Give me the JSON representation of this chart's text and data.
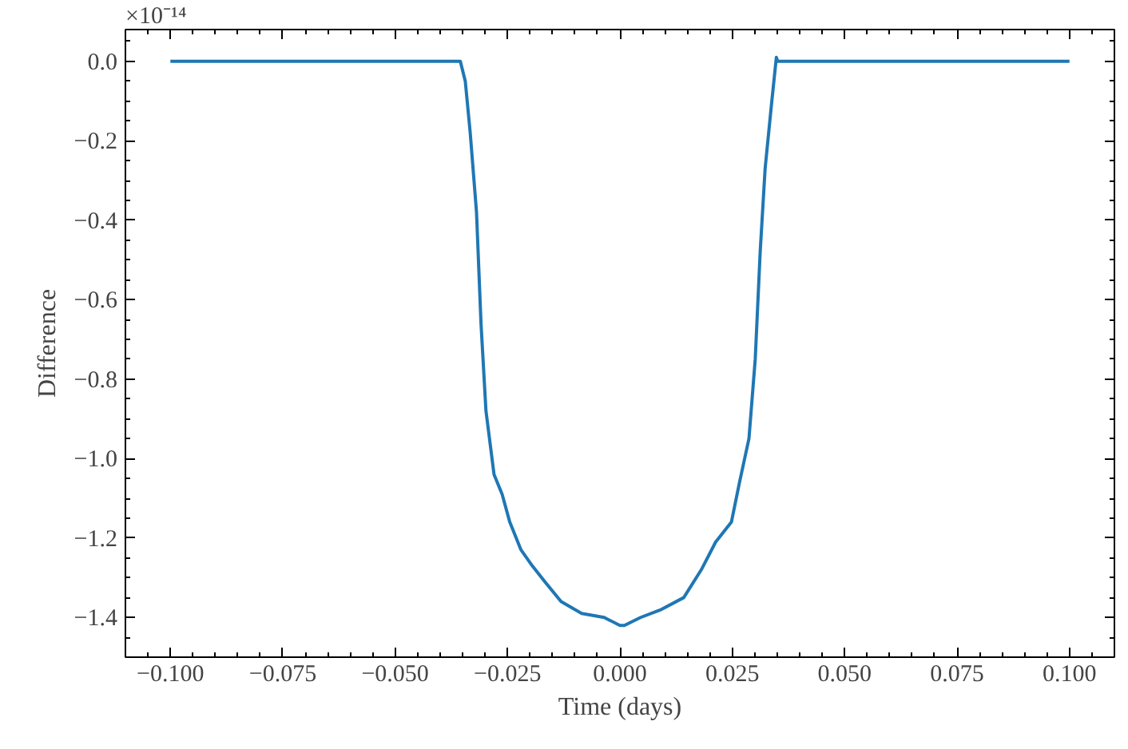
{
  "chart_data": {
    "type": "line",
    "xlabel": "Time (days)",
    "ylabel": "Difference",
    "annotations": [
      "×10⁻¹⁴"
    ],
    "xlim": [
      -0.11,
      0.11
    ],
    "ylim": [
      -1.5,
      0.08
    ],
    "xticks": [
      {
        "value": -0.1,
        "label": "−0.100"
      },
      {
        "value": -0.075,
        "label": "−0.075"
      },
      {
        "value": -0.05,
        "label": "−0.050"
      },
      {
        "value": -0.025,
        "label": "−0.025"
      },
      {
        "value": 0,
        "label": "0.000"
      },
      {
        "value": 0.025,
        "label": "0.025"
      },
      {
        "value": 0.05,
        "label": "0.050"
      },
      {
        "value": 0.075,
        "label": "0.075"
      },
      {
        "value": 0.1,
        "label": "0.100"
      }
    ],
    "yticks": [
      {
        "value": 0,
        "label": "0.0"
      },
      {
        "value": -0.2,
        "label": "−0.2"
      },
      {
        "value": -0.4,
        "label": "−0.4"
      },
      {
        "value": -0.6,
        "label": "−0.6"
      },
      {
        "value": -0.8,
        "label": "−0.8"
      },
      {
        "value": -1.0,
        "label": "−1.0"
      },
      {
        "value": -1.2,
        "label": "−1.2"
      },
      {
        "value": -1.4,
        "label": "−1.4"
      }
    ],
    "grid": false,
    "marker": "none",
    "line_style": "solid",
    "series": [
      {
        "color": "#1f77b4",
        "x": [
          -0.1,
          -0.0355,
          -0.0344,
          -0.0333,
          -0.0319,
          -0.0309,
          -0.0298,
          -0.028,
          -0.0262,
          -0.0245,
          -0.022,
          -0.0195,
          -0.0167,
          -0.0131,
          -0.0085,
          -0.0035,
          0.0,
          0.001,
          0.0046,
          0.0092,
          0.0142,
          0.0181,
          0.0213,
          0.0248,
          0.0266,
          0.0287,
          0.0301,
          0.0312,
          0.0323,
          0.0337,
          0.0348,
          0.0351,
          0.1
        ],
        "values": [
          0,
          0,
          -0.05,
          -0.18,
          -0.38,
          -0.66,
          -0.88,
          -1.04,
          -1.09,
          -1.16,
          -1.23,
          -1.27,
          -1.31,
          -1.36,
          -1.39,
          -1.4,
          -1.42,
          -1.42,
          -1.4,
          -1.38,
          -1.35,
          -1.28,
          -1.21,
          -1.16,
          -1.06,
          -0.95,
          -0.75,
          -0.48,
          -0.27,
          -0.11,
          0.01,
          0,
          0
        ]
      }
    ]
  }
}
